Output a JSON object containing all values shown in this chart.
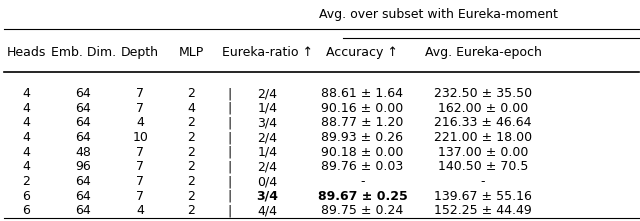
{
  "title_top": "Avg. over subset with Eureka-moment",
  "col_headers": [
    "Heads",
    "Emb. Dim.",
    "Depth",
    "MLP",
    "Eureka-ratio ↑",
    "Accuracy ↑",
    "Avg. Eureka-epoch"
  ],
  "rows": [
    [
      "4",
      "64",
      "7",
      "2",
      "2/4",
      "88.61 ± 1.64",
      "232.50 ± 35.50"
    ],
    [
      "4",
      "64",
      "7",
      "4",
      "1/4",
      "90.16 ± 0.00",
      "162.00 ± 0.00"
    ],
    [
      "4",
      "64",
      "4",
      "2",
      "3/4",
      "88.77 ± 1.20",
      "216.33 ± 46.64"
    ],
    [
      "4",
      "64",
      "10",
      "2",
      "2/4",
      "89.93 ± 0.26",
      "221.00 ± 18.00"
    ],
    [
      "4",
      "48",
      "7",
      "2",
      "1/4",
      "90.18 ± 0.00",
      "137.00 ± 0.00"
    ],
    [
      "4",
      "96",
      "7",
      "2",
      "2/4",
      "89.76 ± 0.03",
      "140.50 ± 70.5"
    ],
    [
      "2",
      "64",
      "7",
      "2",
      "0/4",
      "-",
      "-"
    ],
    [
      "6",
      "64",
      "7",
      "2",
      "3/4",
      "89.67 ± 0.25",
      "139.67 ± 55.16"
    ],
    [
      "6",
      "64",
      "4",
      "2",
      "4/4",
      "89.75 ± 0.24",
      "152.25 ± 44.49"
    ]
  ],
  "bold_row_idx": 8,
  "background_color": "#ffffff",
  "font_size": 9.0,
  "header_font_size": 9.0
}
